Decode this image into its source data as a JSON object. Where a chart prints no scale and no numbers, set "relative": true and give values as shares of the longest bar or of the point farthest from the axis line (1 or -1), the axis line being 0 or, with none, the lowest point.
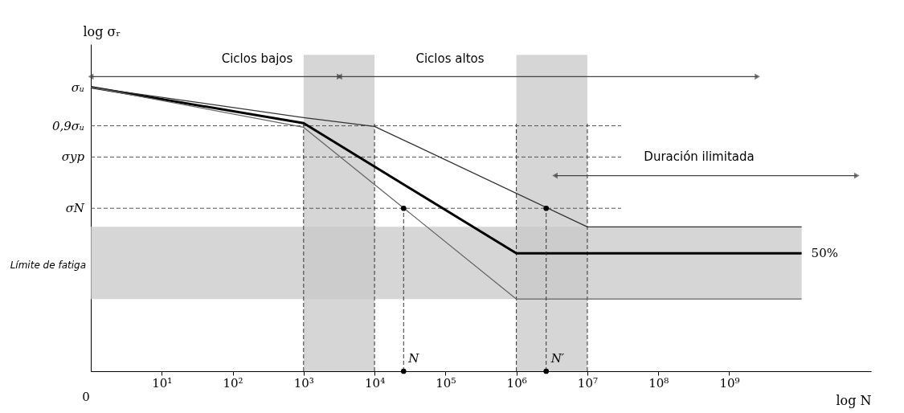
{
  "chart_data": {
    "type": "line",
    "relative": true,
    "log": "x",
    "xlabel": "log N",
    "ylabel": "log σᵣ",
    "xlim": [
      1,
      100000000000.0
    ],
    "xticks": [
      {
        "value": 10,
        "label": "10¹"
      },
      {
        "value": 100,
        "label": "10²"
      },
      {
        "value": 1000,
        "label": "10³"
      },
      {
        "value": 10000,
        "label": "10⁴"
      },
      {
        "value": 100000,
        "label": "10⁵"
      },
      {
        "value": 1000000,
        "label": "10⁶"
      },
      {
        "value": 10000000,
        "label": "10⁷"
      },
      {
        "value": 100000000,
        "label": "10⁸"
      },
      {
        "value": 1000000000,
        "label": "10⁹"
      }
    ],
    "series": [
      {
        "x": [
          1,
          1000,
          1000000,
          10500000000
        ],
        "values": [
          0.964,
          0.842,
          0.4,
          0.4
        ],
        "color": "#000000"
      },
      {
        "x": [
          1,
          1000,
          10000,
          10000000,
          10500000000
        ],
        "values": [
          0.964,
          0.861,
          0.831,
          0.49,
          0.49
        ],
        "color": "#333333"
      },
      {
        "x": [
          1,
          1000,
          1000000,
          10500000000
        ],
        "values": [
          0.964,
          0.828,
          0.245,
          0.245
        ],
        "color": "#666666"
      },
      {
        "x": [
          25700,
          25700
        ],
        "values": [
          0,
          0.553
        ],
        "color": "#333333",
        "line_style": "dashed"
      },
      {
        "x": [
          2630000,
          2630000
        ],
        "values": [
          0,
          0.553
        ],
        "color": "#333333",
        "line_style": "dashed"
      },
      {
        "x": [
          1,
          3200
        ],
        "values": [
          1,
          1
        ],
        "color": "#444444",
        "marker": "triangle"
      },
      {
        "x": [
          3200,
          2500000000
        ],
        "values": [
          1,
          1
        ],
        "color": "#444444",
        "marker": "triangle"
      },
      {
        "x": [
          3500000,
          63000000000
        ],
        "values": [
          0.664,
          0.664
        ],
        "color": "#444444",
        "marker": "triangle"
      },
      {
        "type": "scatter",
        "x": [
          25700,
          2630000,
          25700,
          2630000
        ],
        "values": [
          0.553,
          0.553,
          0,
          0
        ],
        "color": "#000000",
        "marker": "circle"
      }
    ],
    "bands": [
      {
        "axis": "x",
        "from": 1000,
        "to": 10000,
        "color": "#c8c8c8"
      },
      {
        "axis": "x",
        "from": 1000000,
        "to": 10000000,
        "color": "#c8c8c8"
      },
      {
        "axis": "y",
        "from": 0.245,
        "to": 0.49,
        "color": "#c8c8c8"
      }
    ],
    "ref_lines": [
      {
        "axis": "y",
        "value": 0.833,
        "label": "0,9σᵤ",
        "line_style": "dashed"
      },
      {
        "axis": "y",
        "value": 0.727,
        "label": "σyp",
        "line_style": "dashed"
      },
      {
        "axis": "y",
        "value": 0.553,
        "label": "σN",
        "line_style": "dashed"
      },
      {
        "axis": "x",
        "value": 1000,
        "line_style": "dashed"
      },
      {
        "axis": "x",
        "value": 10000,
        "line_style": "dashed"
      },
      {
        "axis": "x",
        "value": 1000000,
        "line_style": "dashed"
      },
      {
        "axis": "x",
        "value": 10000000,
        "line_style": "dashed"
      }
    ],
    "annotations": [
      {
        "text": "σᵤ",
        "x": 1,
        "y": 0.964
      },
      "0",
      "Ciclos bajos",
      "Ciclos altos",
      "Duración ilimitada",
      "Límite de fatiga",
      {
        "text": "50%",
        "x": 10500000000,
        "y": 0.4
      },
      {
        "text": "N",
        "x": 25700,
        "y": 0
      },
      {
        "text": "N′",
        "x": 2630000,
        "y": 0
      }
    ]
  }
}
